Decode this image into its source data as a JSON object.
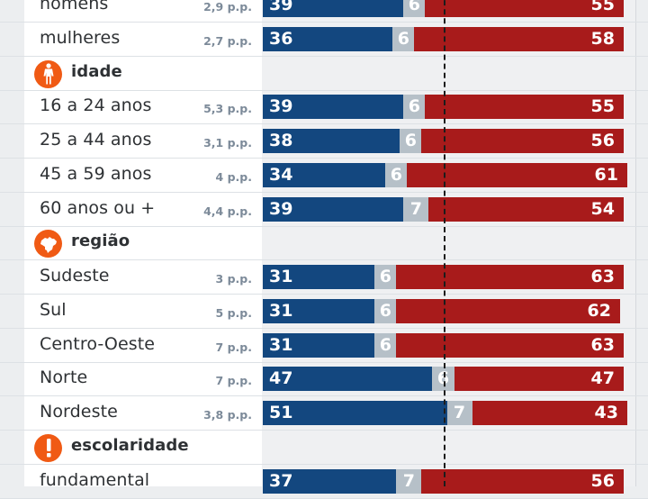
{
  "chart_data": {
    "type": "bar",
    "orientation": "horizontal-stacked-100",
    "series_colors": {
      "a": "#13477f",
      "neutral": "#b6c0c8",
      "b": "#a81b1b"
    },
    "icon_color": "#f05a14",
    "reference_line": 50,
    "xlim": [
      0,
      100
    ],
    "rows": [
      {
        "kind": "item",
        "label": "homens",
        "gap": "2,9 p.p.",
        "a": 39,
        "neutral": 6,
        "b": 55
      },
      {
        "kind": "item",
        "label": "mulheres",
        "gap": "2,7 p.p.",
        "a": 36,
        "neutral": 6,
        "b": 58
      },
      {
        "kind": "group",
        "label": "idade",
        "icon": "person-icon"
      },
      {
        "kind": "item",
        "label": "16 a 24 anos",
        "gap": "5,3 p.p.",
        "a": 39,
        "neutral": 6,
        "b": 55
      },
      {
        "kind": "item",
        "label": "25 a 44 anos",
        "gap": "3,1 p.p.",
        "a": 38,
        "neutral": 6,
        "b": 56
      },
      {
        "kind": "item",
        "label": "45 a 59 anos",
        "gap": "4 p.p.",
        "a": 34,
        "neutral": 6,
        "b": 61
      },
      {
        "kind": "item",
        "label": "60 anos ou +",
        "gap": "4,4 p.p.",
        "a": 39,
        "neutral": 7,
        "b": 54
      },
      {
        "kind": "group",
        "label": "região",
        "icon": "brazil-map-icon"
      },
      {
        "kind": "item",
        "label": "Sudeste",
        "gap": "3 p.p.",
        "a": 31,
        "neutral": 6,
        "b": 63
      },
      {
        "kind": "item",
        "label": "Sul",
        "gap": "5 p.p.",
        "a": 31,
        "neutral": 6,
        "b": 62
      },
      {
        "kind": "item",
        "label": "Centro-Oeste",
        "gap": "7 p.p.",
        "a": 31,
        "neutral": 6,
        "b": 63
      },
      {
        "kind": "item",
        "label": "Norte",
        "gap": "7 p.p.",
        "a": 47,
        "neutral": 6,
        "b": 47
      },
      {
        "kind": "item",
        "label": "Nordeste",
        "gap": "3,8 p.p.",
        "a": 51,
        "neutral": 7,
        "b": 43
      },
      {
        "kind": "group",
        "label": "escolaridade",
        "icon": "exclamation-icon"
      },
      {
        "kind": "item",
        "label": "fundamental",
        "gap": "",
        "a": 37,
        "neutral": 7,
        "b": 56
      }
    ]
  }
}
